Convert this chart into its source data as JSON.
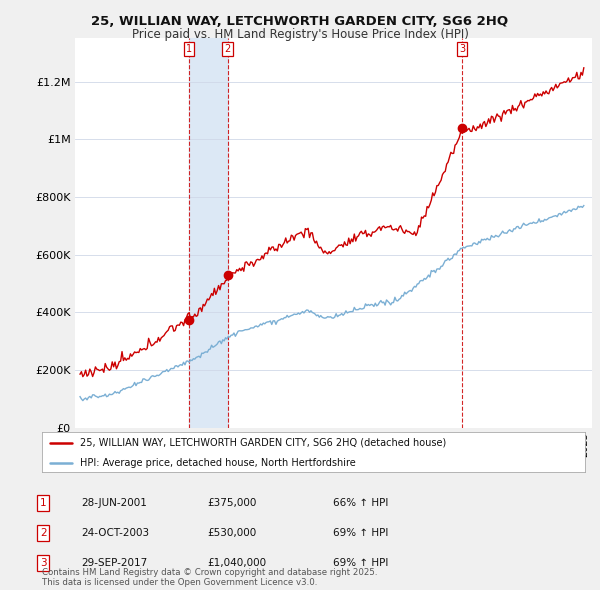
{
  "title1": "25, WILLIAN WAY, LETCHWORTH GARDEN CITY, SG6 2HQ",
  "title2": "Price paid vs. HM Land Registry's House Price Index (HPI)",
  "bg_color": "#f0f0f0",
  "plot_bg": "#ffffff",
  "sale_year_nums": [
    2001.496,
    2003.79,
    2017.747
  ],
  "sale_prices": [
    375000,
    530000,
    1040000
  ],
  "sale_labels": [
    "1",
    "2",
    "3"
  ],
  "legend_line1": "25, WILLIAN WAY, LETCHWORTH GARDEN CITY, SG6 2HQ (detached house)",
  "legend_line2": "HPI: Average price, detached house, North Hertfordshire",
  "table_rows": [
    [
      "1",
      "28-JUN-2001",
      "£375,000",
      "66% ↑ HPI"
    ],
    [
      "2",
      "24-OCT-2003",
      "£530,000",
      "69% ↑ HPI"
    ],
    [
      "3",
      "29-SEP-2017",
      "£1,040,000",
      "69% ↑ HPI"
    ]
  ],
  "footer": "Contains HM Land Registry data © Crown copyright and database right 2025.\nThis data is licensed under the Open Government Licence v3.0.",
  "red_color": "#cc0000",
  "blue_color": "#7bafd4",
  "shade_color": "#dce8f5",
  "ylim": [
    0,
    1350000
  ],
  "yticks": [
    0,
    200000,
    400000,
    600000,
    800000,
    1000000,
    1200000
  ],
  "ytick_labels": [
    "£0",
    "£200K",
    "£400K",
    "£600K",
    "£800K",
    "£1M",
    "£1.2M"
  ],
  "xlim_start": 1994.7,
  "xlim_end": 2025.5
}
